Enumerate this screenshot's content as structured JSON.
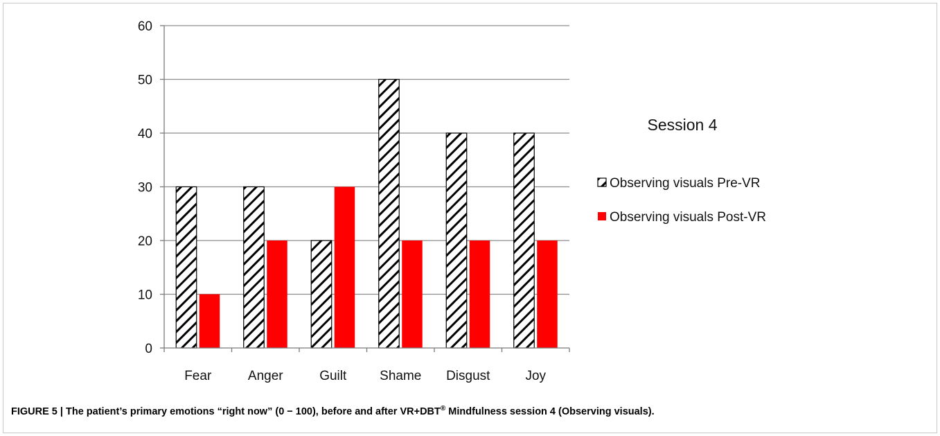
{
  "chart_data": {
    "type": "bar",
    "categories": [
      "Fear",
      "Anger",
      "Guilt",
      "Shame",
      "Disgust",
      "Joy"
    ],
    "series": [
      {
        "name": "Observing visuals Pre-VR",
        "values": [
          30,
          30,
          20,
          50,
          40,
          40
        ],
        "pattern": "diagonal-hatch",
        "color": "#000000"
      },
      {
        "name": "Observing visuals Post-VR",
        "values": [
          10,
          20,
          30,
          20,
          20,
          20
        ],
        "color": "#ff0000"
      }
    ],
    "title": "Session 4",
    "xlabel": "",
    "ylabel": "",
    "ylim": [
      0,
      60
    ],
    "yticks": [
      "0",
      "10",
      "20",
      "30",
      "40",
      "50",
      "60"
    ],
    "grid": true,
    "legend_position": "right"
  },
  "caption": {
    "main": "FIGURE 5 | The patient’s primary emotions “right now” (0 − 100), before and after VR+DBT",
    "sup": "®",
    "tail": " Mindfulness session 4 (Observing visuals)."
  }
}
